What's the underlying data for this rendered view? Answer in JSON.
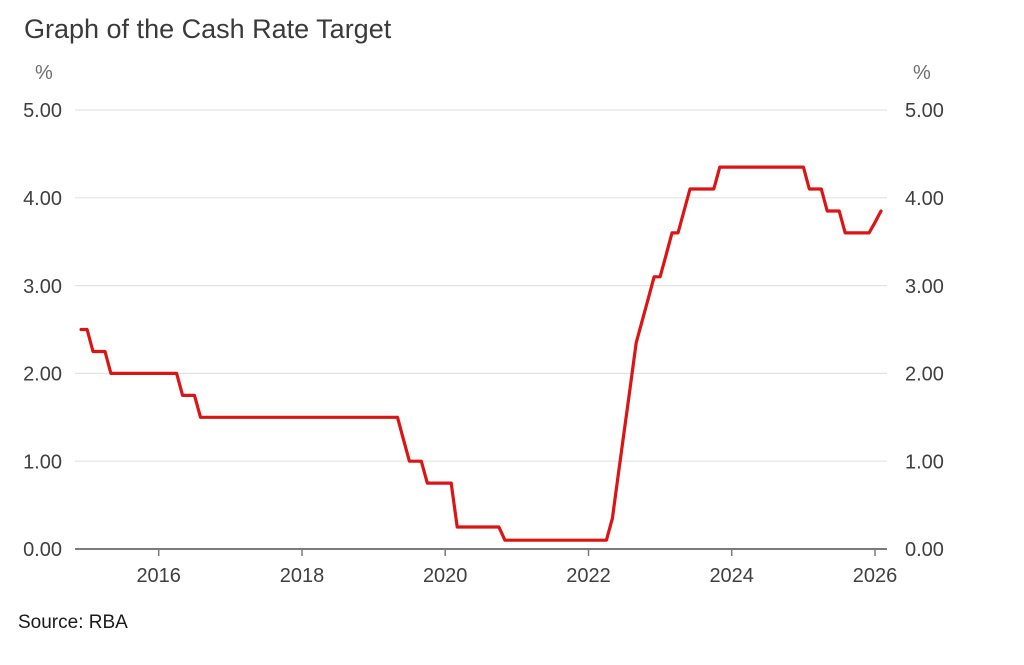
{
  "title": "Graph of the Cash Rate Target",
  "source": "Source: RBA",
  "axes": {
    "unit_left": "%",
    "unit_right": "%",
    "y_ticks": [
      "5.00",
      "4.00",
      "3.00",
      "2.00",
      "1.00",
      "0.00"
    ],
    "x_ticks": [
      "2016",
      "2018",
      "2020",
      "2022",
      "2024",
      "2026"
    ]
  },
  "colors": {
    "line": "#dc1414",
    "grid": "#e3e3e3",
    "axis": "#7a7a7a",
    "label_text": "#3f3f3f",
    "unit_text": "#6e6e6e",
    "title_text": "#3a3a3a",
    "source_text": "#1a1a1a",
    "background": "#ffffff"
  },
  "chart_data": {
    "type": "line",
    "title": "Graph of the Cash Rate Target",
    "xlabel": "",
    "ylabel": "%",
    "ylim": [
      0,
      5
    ],
    "y_tick_values": [
      0.0,
      1.0,
      2.0,
      3.0,
      4.0,
      5.0
    ],
    "x_tick_years": [
      2016,
      2018,
      2020,
      2022,
      2024,
      2026
    ],
    "x_range": [
      "2014-12",
      "2026-02"
    ],
    "grid": "horizontal",
    "legend": "none",
    "series": [
      {
        "name": "Cash Rate Target",
        "color": "#dc1414",
        "points": [
          [
            "2014-12",
            2.5
          ],
          [
            "2015-01",
            2.5
          ],
          [
            "2015-02",
            2.25
          ],
          [
            "2015-03",
            2.25
          ],
          [
            "2015-04",
            2.25
          ],
          [
            "2015-05",
            2.0
          ],
          [
            "2015-06",
            2.0
          ],
          [
            "2015-07",
            2.0
          ],
          [
            "2015-08",
            2.0
          ],
          [
            "2015-09",
            2.0
          ],
          [
            "2015-10",
            2.0
          ],
          [
            "2015-11",
            2.0
          ],
          [
            "2015-12",
            2.0
          ],
          [
            "2016-01",
            2.0
          ],
          [
            "2016-02",
            2.0
          ],
          [
            "2016-03",
            2.0
          ],
          [
            "2016-04",
            2.0
          ],
          [
            "2016-05",
            1.75
          ],
          [
            "2016-06",
            1.75
          ],
          [
            "2016-07",
            1.75
          ],
          [
            "2016-08",
            1.5
          ],
          [
            "2016-09",
            1.5
          ],
          [
            "2016-10",
            1.5
          ],
          [
            "2016-11",
            1.5
          ],
          [
            "2016-12",
            1.5
          ],
          [
            "2017-01",
            1.5
          ],
          [
            "2017-02",
            1.5
          ],
          [
            "2017-03",
            1.5
          ],
          [
            "2017-04",
            1.5
          ],
          [
            "2017-05",
            1.5
          ],
          [
            "2017-06",
            1.5
          ],
          [
            "2017-07",
            1.5
          ],
          [
            "2017-08",
            1.5
          ],
          [
            "2017-09",
            1.5
          ],
          [
            "2017-10",
            1.5
          ],
          [
            "2017-11",
            1.5
          ],
          [
            "2017-12",
            1.5
          ],
          [
            "2018-01",
            1.5
          ],
          [
            "2018-02",
            1.5
          ],
          [
            "2018-03",
            1.5
          ],
          [
            "2018-04",
            1.5
          ],
          [
            "2018-05",
            1.5
          ],
          [
            "2018-06",
            1.5
          ],
          [
            "2018-07",
            1.5
          ],
          [
            "2018-08",
            1.5
          ],
          [
            "2018-09",
            1.5
          ],
          [
            "2018-10",
            1.5
          ],
          [
            "2018-11",
            1.5
          ],
          [
            "2018-12",
            1.5
          ],
          [
            "2019-01",
            1.5
          ],
          [
            "2019-02",
            1.5
          ],
          [
            "2019-03",
            1.5
          ],
          [
            "2019-04",
            1.5
          ],
          [
            "2019-05",
            1.5
          ],
          [
            "2019-06",
            1.25
          ],
          [
            "2019-07",
            1.0
          ],
          [
            "2019-08",
            1.0
          ],
          [
            "2019-09",
            1.0
          ],
          [
            "2019-10",
            0.75
          ],
          [
            "2019-11",
            0.75
          ],
          [
            "2019-12",
            0.75
          ],
          [
            "2020-01",
            0.75
          ],
          [
            "2020-02",
            0.75
          ],
          [
            "2020-03",
            0.25
          ],
          [
            "2020-04",
            0.25
          ],
          [
            "2020-05",
            0.25
          ],
          [
            "2020-06",
            0.25
          ],
          [
            "2020-07",
            0.25
          ],
          [
            "2020-08",
            0.25
          ],
          [
            "2020-09",
            0.25
          ],
          [
            "2020-10",
            0.25
          ],
          [
            "2020-11",
            0.1
          ],
          [
            "2020-12",
            0.1
          ],
          [
            "2021-01",
            0.1
          ],
          [
            "2021-02",
            0.1
          ],
          [
            "2021-03",
            0.1
          ],
          [
            "2021-04",
            0.1
          ],
          [
            "2021-05",
            0.1
          ],
          [
            "2021-06",
            0.1
          ],
          [
            "2021-07",
            0.1
          ],
          [
            "2021-08",
            0.1
          ],
          [
            "2021-09",
            0.1
          ],
          [
            "2021-10",
            0.1
          ],
          [
            "2021-11",
            0.1
          ],
          [
            "2021-12",
            0.1
          ],
          [
            "2022-01",
            0.1
          ],
          [
            "2022-02",
            0.1
          ],
          [
            "2022-03",
            0.1
          ],
          [
            "2022-04",
            0.1
          ],
          [
            "2022-05",
            0.35
          ],
          [
            "2022-06",
            0.85
          ],
          [
            "2022-07",
            1.35
          ],
          [
            "2022-08",
            1.85
          ],
          [
            "2022-09",
            2.35
          ],
          [
            "2022-10",
            2.6
          ],
          [
            "2022-11",
            2.85
          ],
          [
            "2022-12",
            3.1
          ],
          [
            "2023-01",
            3.1
          ],
          [
            "2023-02",
            3.35
          ],
          [
            "2023-03",
            3.6
          ],
          [
            "2023-04",
            3.6
          ],
          [
            "2023-05",
            3.85
          ],
          [
            "2023-06",
            4.1
          ],
          [
            "2023-07",
            4.1
          ],
          [
            "2023-08",
            4.1
          ],
          [
            "2023-09",
            4.1
          ],
          [
            "2023-10",
            4.1
          ],
          [
            "2023-11",
            4.35
          ],
          [
            "2023-12",
            4.35
          ],
          [
            "2024-01",
            4.35
          ],
          [
            "2024-02",
            4.35
          ],
          [
            "2024-03",
            4.35
          ],
          [
            "2024-04",
            4.35
          ],
          [
            "2024-05",
            4.35
          ],
          [
            "2024-06",
            4.35
          ],
          [
            "2024-07",
            4.35
          ],
          [
            "2024-08",
            4.35
          ],
          [
            "2024-09",
            4.35
          ],
          [
            "2024-10",
            4.35
          ],
          [
            "2024-11",
            4.35
          ],
          [
            "2024-12",
            4.35
          ],
          [
            "2025-01",
            4.35
          ],
          [
            "2025-02",
            4.1
          ],
          [
            "2025-03",
            4.1
          ],
          [
            "2025-04",
            4.1
          ],
          [
            "2025-05",
            3.85
          ],
          [
            "2025-06",
            3.85
          ],
          [
            "2025-07",
            3.85
          ],
          [
            "2025-08",
            3.6
          ],
          [
            "2025-09",
            3.6
          ],
          [
            "2025-10",
            3.6
          ],
          [
            "2025-11",
            3.6
          ],
          [
            "2025-12",
            3.6
          ],
          [
            "2026-01",
            3.72
          ],
          [
            "2026-02",
            3.85
          ]
        ]
      }
    ]
  }
}
